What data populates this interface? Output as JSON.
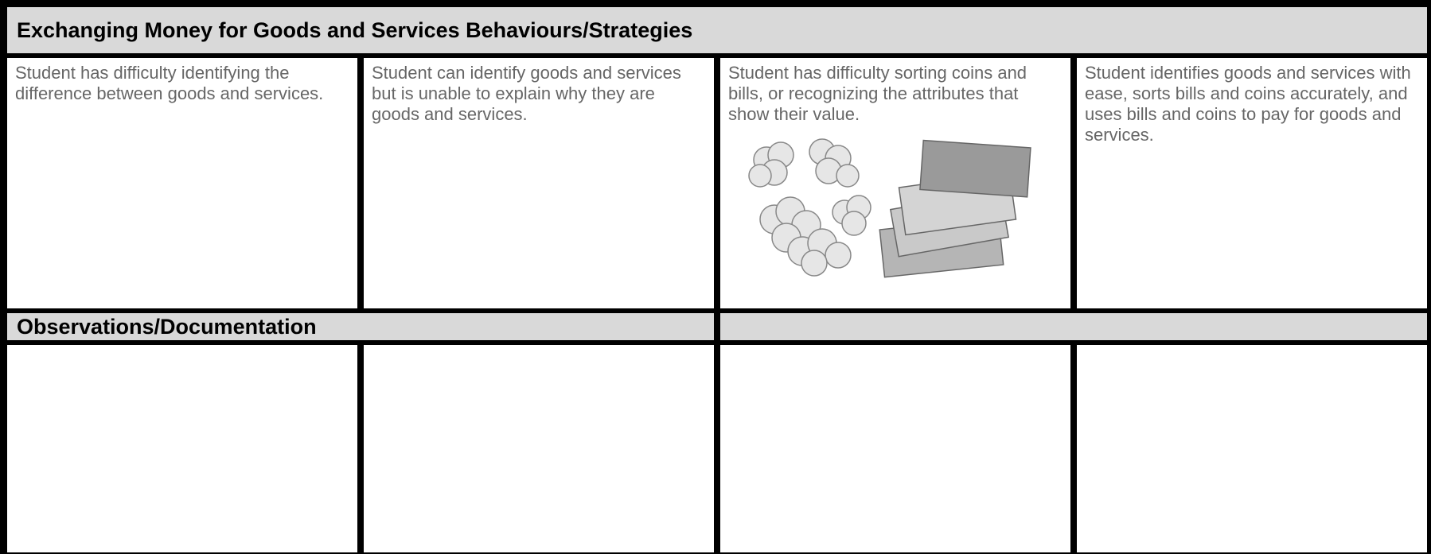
{
  "header": {
    "title": "Exchanging Money for Goods and Services Behaviours/Strategies"
  },
  "behaviours": [
    "Student has difficulty identifying the difference between goods and services.",
    "Student can identify goods and services but is unable to explain why they are goods and services.",
    "Student has difficulty sorting coins and bills, or recognizing the attributes that show their value.",
    "Student identifies goods and services with ease, sorts bills and coins accurately, and uses bills and coins to pay for goods and services."
  ],
  "observations": {
    "title": "Observations/Documentation"
  }
}
